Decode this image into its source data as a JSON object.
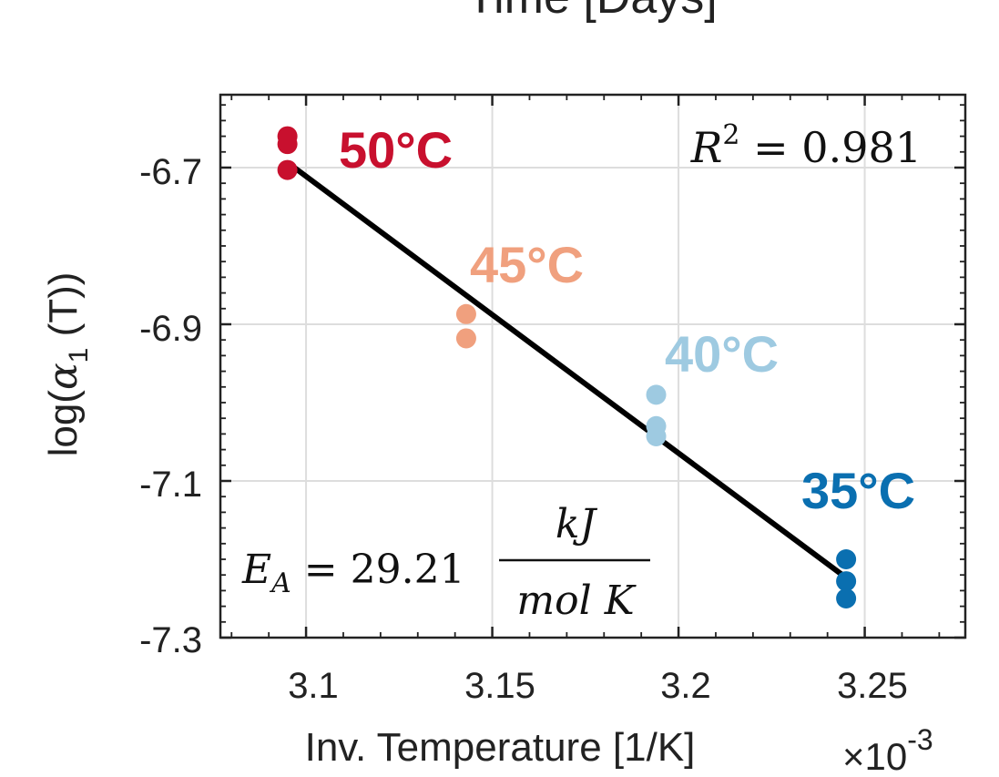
{
  "chart_data": {
    "type": "scatter",
    "cropped_title": "Time [Days]",
    "xlabel": "Inv. Temperature [1/K]",
    "ylabel_prefix": "log(",
    "ylabel_symbol": "α",
    "ylabel_sub": "1",
    "ylabel_suffix": " (T))",
    "x_multiplier_base": "×10",
    "x_multiplier_exp": "-3",
    "xlim": [
      3.077,
      3.277
    ],
    "ylim": [
      -7.3,
      -6.607
    ],
    "x_ticks": [
      3.1,
      3.15,
      3.2,
      3.25
    ],
    "x_tick_labels": [
      "3.1",
      "3.15",
      "3.2",
      "3.25"
    ],
    "y_ticks": [
      -6.7,
      -6.9,
      -7.1,
      -7.3
    ],
    "y_tick_labels": [
      "-6.7",
      "-6.9",
      "-7.1",
      "-7.3"
    ],
    "grid": true,
    "series": [
      {
        "name": "50°C",
        "color": "#c8102e",
        "x": [
          3.095,
          3.095,
          3.095
        ],
        "y": [
          -6.66,
          -6.67,
          -6.703
        ]
      },
      {
        "name": "45°C",
        "color": "#f0a07e",
        "x": [
          3.143,
          3.143
        ],
        "y": [
          -6.887,
          -6.918
        ]
      },
      {
        "name": "40°C",
        "color": "#9ecae1",
        "x": [
          3.194,
          3.194,
          3.194
        ],
        "y": [
          -6.99,
          -7.03,
          -7.043
        ]
      },
      {
        "name": "35°C",
        "color": "#0a6fb0",
        "x": [
          3.245,
          3.245,
          3.245
        ],
        "y": [
          -7.2,
          -7.228,
          -7.25
        ]
      }
    ],
    "fit_line": {
      "x": [
        3.096,
        3.244
      ],
      "y": [
        -6.697,
        -7.22
      ],
      "color": "#000000"
    },
    "r_squared": {
      "symbol": "R",
      "sup": "2",
      "text": " = 0.981"
    },
    "activation_energy": {
      "symbol": "E",
      "sub": "A",
      "value_text": " = 29.21",
      "numerator": "kJ",
      "denominator": "mol K"
    }
  }
}
